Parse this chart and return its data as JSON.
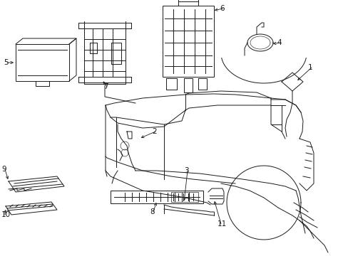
{
  "background_color": "#ffffff",
  "fig_width": 4.89,
  "fig_height": 3.6,
  "dpi": 100,
  "line_color": "#1a1a1a",
  "lw": 0.7,
  "fontsize": 7.5
}
